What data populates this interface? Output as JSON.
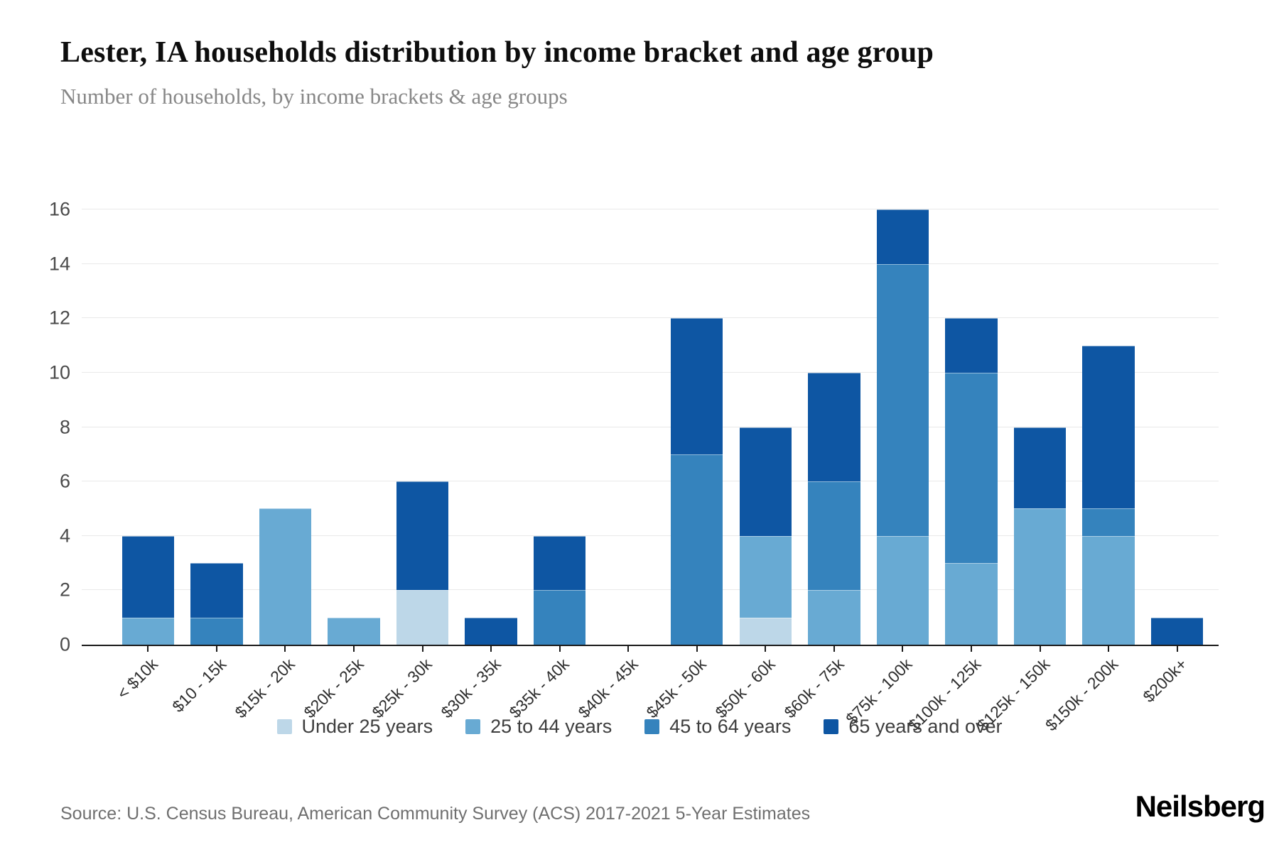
{
  "header": {
    "title": "Lester, IA households distribution by income bracket and age group",
    "subtitle": "Number of households, by income brackets & age groups"
  },
  "chart_data": {
    "type": "bar",
    "stacked": true,
    "title": "Lester, IA households distribution by income bracket and age group",
    "xlabel": "",
    "ylabel": "",
    "ylim": [
      0,
      16
    ],
    "yticks": [
      0,
      2,
      4,
      6,
      8,
      10,
      12,
      14,
      16
    ],
    "grid": true,
    "legend_position": "bottom",
    "categories": [
      "< $10k",
      "$10 - 15k",
      "$15k - 20k",
      "$20k - 25k",
      "$25k - 30k",
      "$30k - 35k",
      "$35k - 40k",
      "$40k - 45k",
      "$45k - 50k",
      "$50k - 60k",
      "$60k - 75k",
      "$75k - 100k",
      "$100k - 125k",
      "$125k - 150k",
      "$150k - 200k",
      "$200k+"
    ],
    "series": [
      {
        "name": "Under 25 years",
        "color": "#bdd7e8",
        "values": [
          0,
          0,
          0,
          0,
          2,
          0,
          0,
          0,
          0,
          1,
          0,
          0,
          0,
          0,
          0,
          0
        ]
      },
      {
        "name": "25 to 44 years",
        "color": "#68aad3",
        "values": [
          1,
          0,
          5,
          1,
          0,
          0,
          0,
          0,
          0,
          3,
          2,
          4,
          3,
          5,
          4,
          0
        ]
      },
      {
        "name": "45 to 64 years",
        "color": "#3583bd",
        "values": [
          0,
          1,
          0,
          0,
          0,
          0,
          2,
          0,
          7,
          0,
          4,
          10,
          7,
          0,
          1,
          0
        ]
      },
      {
        "name": "65 years and over",
        "color": "#0e56a3",
        "values": [
          3,
          2,
          0,
          0,
          4,
          1,
          2,
          0,
          5,
          4,
          4,
          2,
          2,
          3,
          6,
          1
        ]
      }
    ],
    "totals": [
      4,
      3,
      5,
      1,
      6,
      1,
      4,
      0,
      12,
      8,
      10,
      16,
      12,
      8,
      11,
      1
    ]
  },
  "footer": {
    "source": "Source: U.S. Census Bureau, American Community Survey (ACS) 2017-2021 5-Year Estimates",
    "brand": "Neilsberg"
  }
}
